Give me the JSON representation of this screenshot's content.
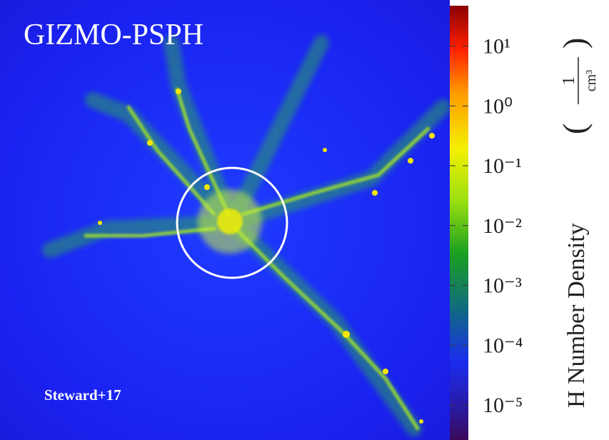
{
  "title": "GIZMO-PSPH",
  "credit": "Steward+17",
  "colorbar": {
    "label": "H Number Density",
    "unit_numerator": "1",
    "unit_denominator": "cm³",
    "log": true,
    "lim": [
      2.6e-06,
      59
    ],
    "ticks": [
      {
        "value": 10,
        "label": "10¹"
      },
      {
        "value": 1,
        "label": "10⁰"
      },
      {
        "value": 0.1,
        "label": "10⁻¹"
      },
      {
        "value": 0.01,
        "label": "10⁻²"
      },
      {
        "value": 0.001,
        "label": "10⁻³"
      },
      {
        "value": 0.0001,
        "label": "10⁻⁴"
      },
      {
        "value": 1e-05,
        "label": "10⁻⁵"
      }
    ]
  }
}
